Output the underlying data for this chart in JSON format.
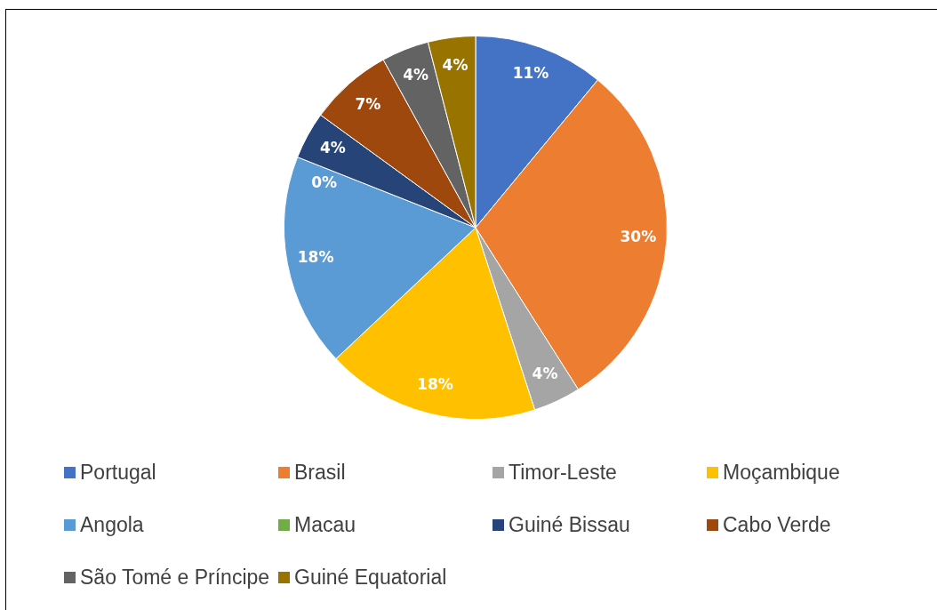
{
  "chart_data": {
    "type": "pie",
    "categories": [
      "Portugal",
      "Brasil",
      "Timor-Leste",
      "Moçambique",
      "Angola",
      "Macau",
      "Guiné Bissau",
      "Cabo Verde",
      "São Tomé e Príncipe",
      "Guiné Equatorial"
    ],
    "values": [
      11,
      30,
      4,
      18,
      18,
      0,
      4,
      7,
      4,
      4
    ],
    "value_labels": [
      "11%",
      "30%",
      "4%",
      "18%",
      "18%",
      "0%",
      "4%",
      "7%",
      "4%",
      "4%"
    ],
    "colors": [
      "#4472c4",
      "#ed7d31",
      "#a5a5a5",
      "#ffc000",
      "#5b9bd5",
      "#70ad47",
      "#264478",
      "#9e480e",
      "#636363",
      "#997300"
    ],
    "legend": "bottom"
  }
}
